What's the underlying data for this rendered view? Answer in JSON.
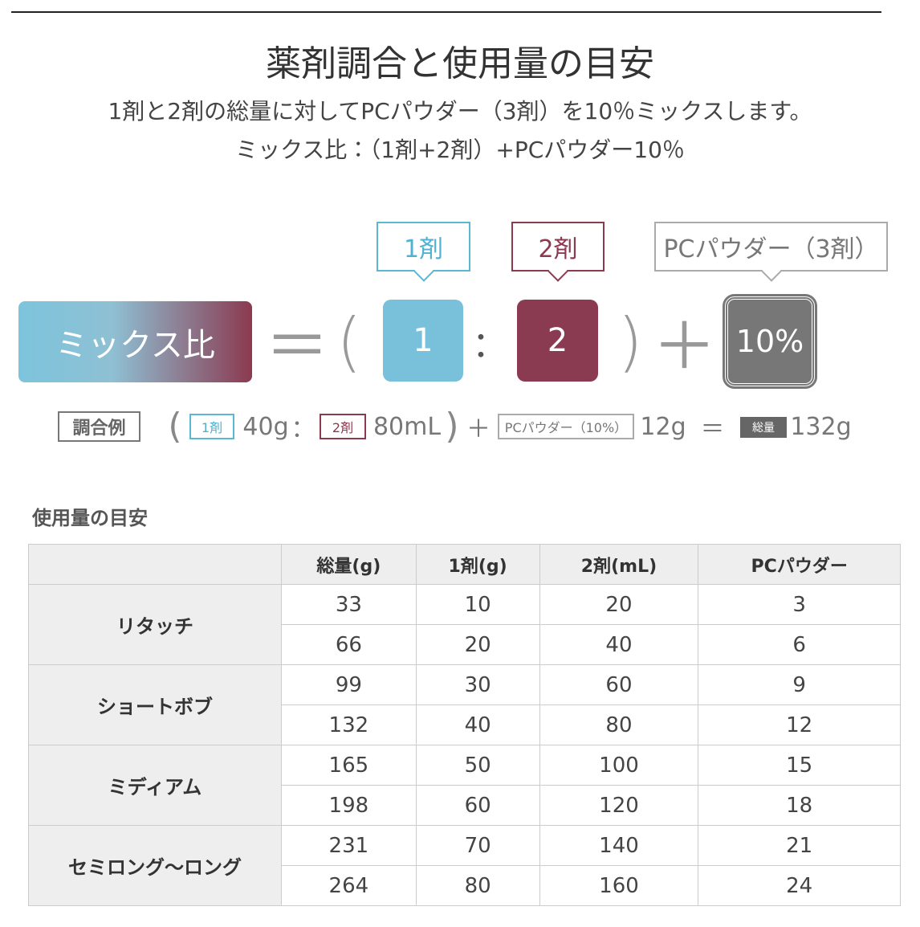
{
  "header": {
    "title": "薬剤調合と使用量の目安",
    "lines": [
      "1剤と2剤の総量に対してPCパウダー（3剤）を10％ミックスします。",
      "ミックス比：（1剤+2剤）+PCパウダー10％"
    ]
  },
  "diagram": {
    "callouts": [
      "1剤",
      "2剤",
      "PCパウダー（3剤）"
    ],
    "mix_label": "ミックス比",
    "equals": "＝",
    "open": "(",
    "first": "1",
    "colon": "：",
    "second": "2",
    "close": ")",
    "plus": "＋",
    "powder": "10%"
  },
  "example": {
    "label": "調合例",
    "open": "(",
    "tag1": "1剤",
    "amount1": "40g",
    "colon": "：",
    "tag2": "2剤",
    "amount2": "80mL",
    "close": ")",
    "plus": "＋",
    "tag3": "PCパウダー（10%）",
    "amount3": "12g",
    "equals": "＝",
    "tag4": "総量",
    "amount4": "132g"
  },
  "table": {
    "title": "使用量の目安",
    "headers": [
      "総量(g)",
      "1剤(g)",
      "2剤(mL)",
      "PCパウダー"
    ],
    "groups": [
      {
        "label": "リタッチ",
        "rows": [
          [
            33,
            10,
            20,
            3
          ],
          [
            66,
            20,
            40,
            6
          ]
        ]
      },
      {
        "label": "ショートボブ",
        "rows": [
          [
            99,
            30,
            60,
            9
          ],
          [
            132,
            40,
            80,
            12
          ]
        ]
      },
      {
        "label": "ミディアム",
        "rows": [
          [
            165,
            50,
            100,
            15
          ],
          [
            198,
            60,
            120,
            18
          ]
        ]
      },
      {
        "label": "セミロング〜ロング",
        "rows": [
          [
            231,
            70,
            140,
            21
          ],
          [
            264,
            80,
            160,
            24
          ]
        ]
      }
    ]
  }
}
